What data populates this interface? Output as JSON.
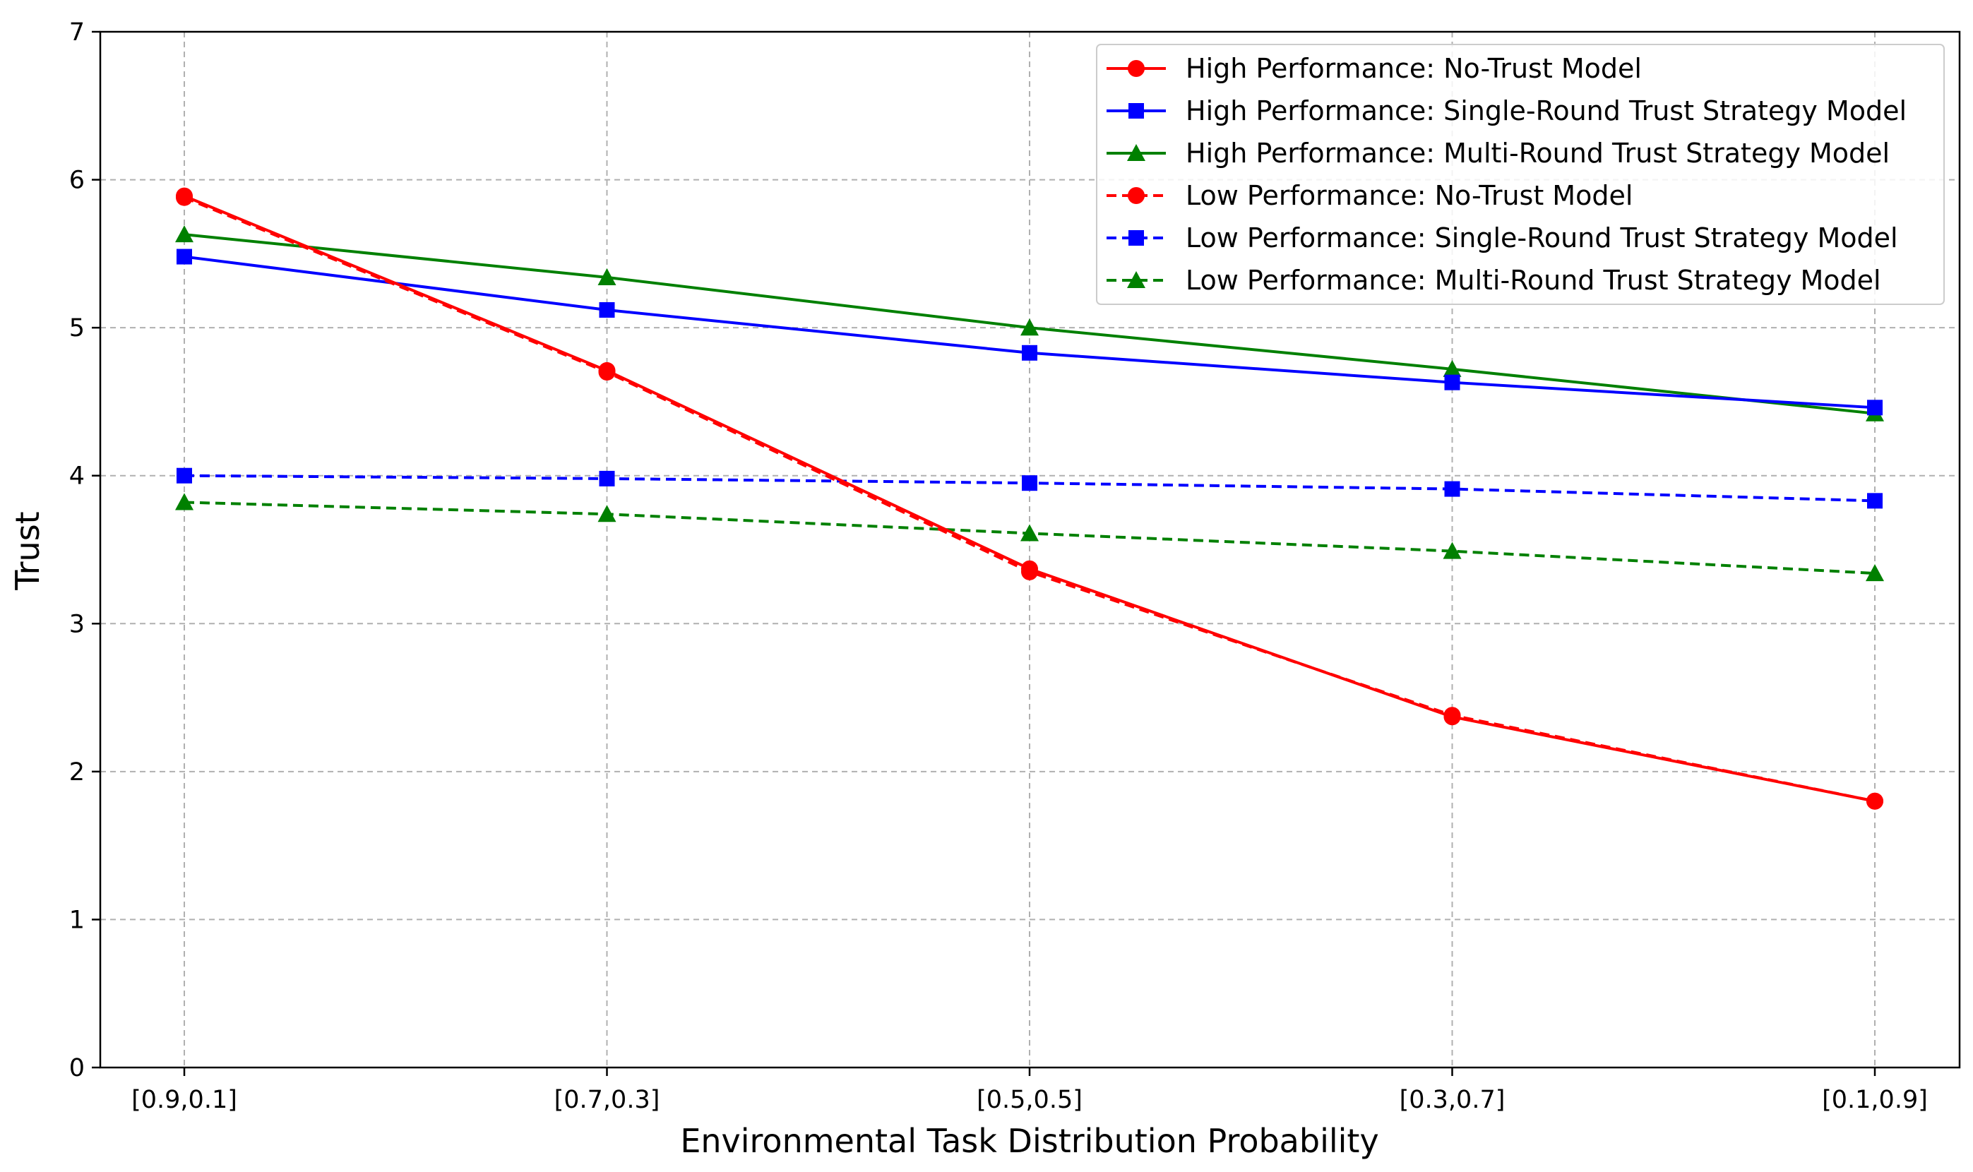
{
  "chart_data": {
    "type": "line",
    "title": "",
    "xlabel": "Environmental Task Distribution Probability",
    "ylabel": "Trust",
    "categories": [
      "[0.9,0.1]",
      "[0.7,0.3]",
      "[0.5,0.5]",
      "[0.3,0.7]",
      "[0.1,0.9]"
    ],
    "ylim": [
      0,
      7
    ],
    "yticks": [
      "0",
      "1",
      "2",
      "3",
      "4",
      "5",
      "6",
      "7"
    ],
    "grid": true,
    "legend_position": "top-right",
    "series": [
      {
        "name": "High Performance: No-Trust Model",
        "values": [
          5.89,
          4.71,
          3.37,
          2.37,
          1.8
        ],
        "color": "#ff0000",
        "line_style": "solid",
        "marker": "circle"
      },
      {
        "name": "High Performance: Single-Round Trust Strategy Model",
        "values": [
          5.48,
          5.12,
          4.83,
          4.63,
          4.46
        ],
        "color": "#0000ff",
        "line_style": "solid",
        "marker": "square"
      },
      {
        "name": "High Performance: Multi-Round Trust Strategy Model",
        "values": [
          5.63,
          5.34,
          5.0,
          4.72,
          4.42
        ],
        "color": "#008000",
        "line_style": "solid",
        "marker": "triangle"
      },
      {
        "name": "Low Performance: No-Trust Model",
        "values": [
          5.88,
          4.7,
          3.35,
          2.38,
          1.8
        ],
        "color": "#ff0000",
        "line_style": "dashed",
        "marker": "circle"
      },
      {
        "name": "Low Performance: Single-Round Trust Strategy Model",
        "values": [
          4.0,
          3.98,
          3.95,
          3.91,
          3.83
        ],
        "color": "#0000ff",
        "line_style": "dashed",
        "marker": "square"
      },
      {
        "name": "Low Performance: Multi-Round Trust Strategy Model",
        "values": [
          3.82,
          3.74,
          3.61,
          3.49,
          3.34
        ],
        "color": "#008000",
        "line_style": "dashed",
        "marker": "triangle"
      }
    ]
  }
}
